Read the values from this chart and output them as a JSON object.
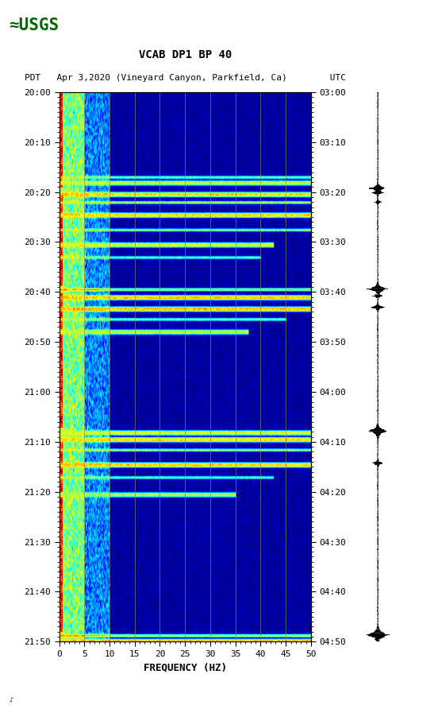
{
  "title_line1": "VCAB DP1 BP 40",
  "title_line2": "PDT   Apr 3,2020 (Vineyard Canyon, Parkfield, Ca)        UTC",
  "left_yticks": [
    "20:00",
    "20:10",
    "20:20",
    "20:30",
    "20:40",
    "20:50",
    "21:00",
    "21:10",
    "21:20",
    "21:30",
    "21:40",
    "21:50"
  ],
  "right_yticks": [
    "03:00",
    "03:10",
    "03:20",
    "03:30",
    "03:40",
    "03:50",
    "04:00",
    "04:10",
    "04:20",
    "04:30",
    "04:40",
    "04:50"
  ],
  "xlabel": "FREQUENCY (HZ)",
  "xticks": [
    0,
    5,
    10,
    15,
    20,
    25,
    30,
    35,
    40,
    45,
    50
  ],
  "freq_min": 0,
  "freq_max": 50,
  "background_color": "#ffffff",
  "vertical_lines_color": "#808060",
  "vertical_lines_x": [
    5,
    10,
    15,
    20,
    25,
    30,
    35,
    40,
    45
  ],
  "fig_width": 5.52,
  "fig_height": 8.92,
  "usgs_color": "#006400",
  "n_time": 240,
  "n_freq": 300
}
